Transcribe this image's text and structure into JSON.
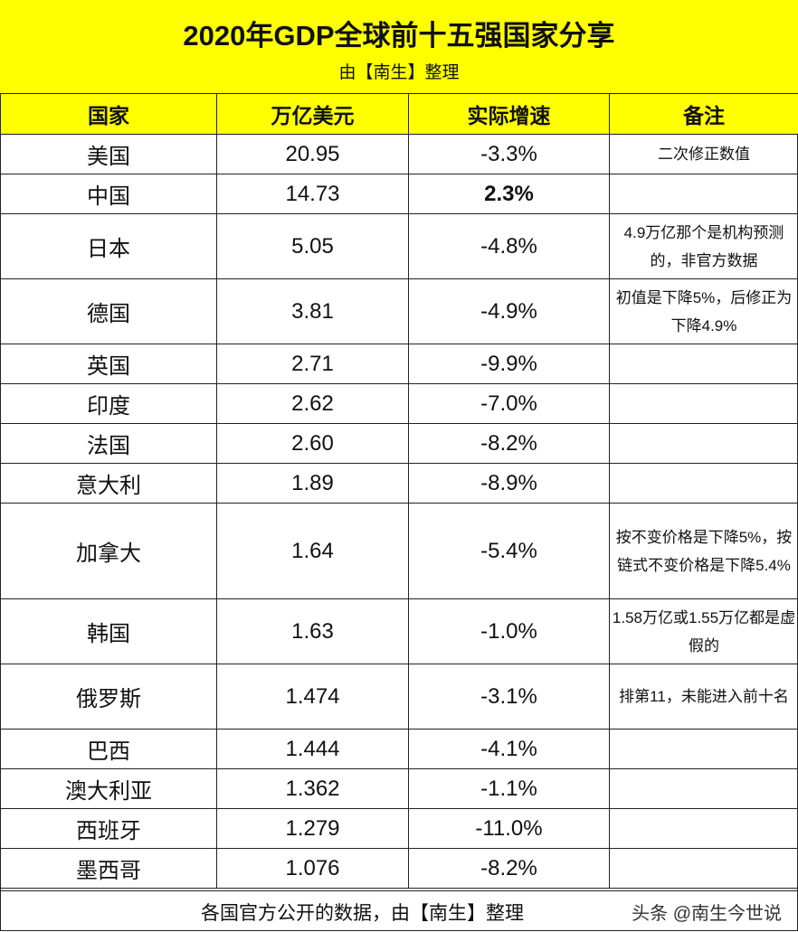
{
  "header": {
    "title": "2020年GDP全球前十五强国家分享",
    "subtitle": "由【南生】整理"
  },
  "table": {
    "columns": [
      "国家",
      "万亿美元",
      "实际增速",
      "备注"
    ],
    "rows": [
      {
        "country": "美国",
        "gdp": "20.95",
        "growth": "-3.3%",
        "note": "二次修正数值"
      },
      {
        "country": "中国",
        "gdp": "14.73",
        "growth": "2.3%",
        "note": ""
      },
      {
        "country": "日本",
        "gdp": "5.05",
        "growth": "-4.8%",
        "note": "4.9万亿那个是机构预测的，非官方数据"
      },
      {
        "country": "德国",
        "gdp": "3.81",
        "growth": "-4.9%",
        "note": "初值是下降5%，后修正为下降4.9%"
      },
      {
        "country": "英国",
        "gdp": "2.71",
        "growth": "-9.9%",
        "note": ""
      },
      {
        "country": "印度",
        "gdp": "2.62",
        "growth": "-7.0%",
        "note": ""
      },
      {
        "country": "法国",
        "gdp": "2.60",
        "growth": "-8.2%",
        "note": ""
      },
      {
        "country": "意大利",
        "gdp": "1.89",
        "growth": "-8.9%",
        "note": ""
      },
      {
        "country": "加拿大",
        "gdp": "1.64",
        "growth": "-5.4%",
        "note": "按不变价格是下降5%，按链式不变价格是下降5.4%"
      },
      {
        "country": "韩国",
        "gdp": "1.63",
        "growth": "-1.0%",
        "note": "1.58万亿或1.55万亿都是虚假的"
      },
      {
        "country": "俄罗斯",
        "gdp": "1.474",
        "growth": "-3.1%",
        "note": "排第11，未能进入前十名"
      },
      {
        "country": "巴西",
        "gdp": "1.444",
        "growth": "-4.1%",
        "note": ""
      },
      {
        "country": "澳大利亚",
        "gdp": "1.362",
        "growth": "-1.1%",
        "note": ""
      },
      {
        "country": "西班牙",
        "gdp": "1.279",
        "growth": "-11.0%",
        "note": ""
      },
      {
        "country": "墨西哥",
        "gdp": "1.076",
        "growth": "-8.2%",
        "note": ""
      }
    ]
  },
  "footer": {
    "text": "各国官方公开的数据，由【南生】整理",
    "watermark": "头条 @南生今世说"
  },
  "colors": {
    "header_bg": "#ffff00",
    "border": "#222222"
  }
}
